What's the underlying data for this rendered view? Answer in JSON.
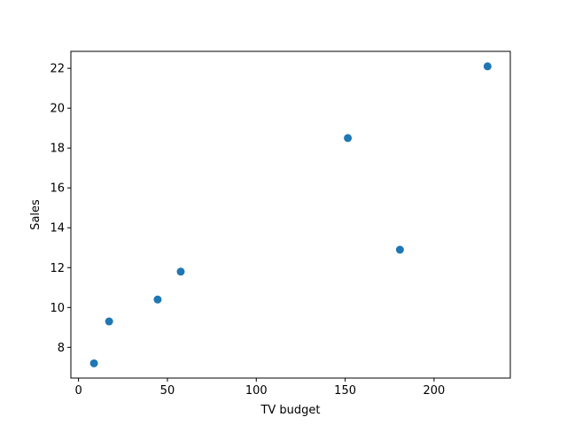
{
  "chart_data": {
    "type": "scatter",
    "title": "",
    "xlabel": "TV budget",
    "ylabel": "Sales",
    "xlim": [
      -4.3,
      242.9
    ],
    "ylim": [
      6.46,
      22.85
    ],
    "xticks": [
      0,
      50,
      100,
      150,
      200
    ],
    "yticks": [
      8,
      10,
      12,
      14,
      16,
      18,
      20,
      22
    ],
    "grid": false,
    "legend": "none",
    "series": [
      {
        "color": "#1f77b4",
        "points": [
          {
            "x": 8.7,
            "y": 7.2
          },
          {
            "x": 17.2,
            "y": 9.3
          },
          {
            "x": 44.5,
            "y": 10.4
          },
          {
            "x": 57.5,
            "y": 11.8
          },
          {
            "x": 151.5,
            "y": 18.5
          },
          {
            "x": 180.8,
            "y": 12.9
          },
          {
            "x": 230.1,
            "y": 22.1
          }
        ]
      }
    ]
  }
}
